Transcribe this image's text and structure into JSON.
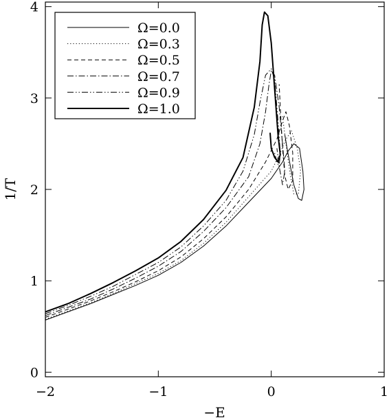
{
  "chart_data": {
    "type": "line",
    "title": "",
    "xlabel": "−E",
    "ylabel": "1/T",
    "xlim": [
      -2,
      1
    ],
    "ylim": [
      -0.05,
      4.05
    ],
    "x_ticks": [
      -2,
      -1,
      0,
      1
    ],
    "x_tick_labels": [
      "−2",
      "−1",
      "0",
      "1"
    ],
    "y_ticks": [
      0,
      1,
      2,
      3,
      4
    ],
    "y_tick_labels": [
      "0",
      "1",
      "2",
      "3",
      "4"
    ],
    "grid": false,
    "legend_position": "top-left",
    "series": [
      {
        "name": "Ω=0.0",
        "style": "solid",
        "width": 1.0,
        "points": [
          [
            -2.0,
            0.57
          ],
          [
            -1.8,
            0.66
          ],
          [
            -1.6,
            0.75
          ],
          [
            -1.4,
            0.85
          ],
          [
            -1.2,
            0.95
          ],
          [
            -1.0,
            1.06
          ],
          [
            -0.8,
            1.2
          ],
          [
            -0.6,
            1.38
          ],
          [
            -0.4,
            1.6
          ],
          [
            -0.2,
            1.86
          ],
          [
            0.0,
            2.12
          ],
          [
            0.1,
            2.3
          ],
          [
            0.15,
            2.42
          ],
          [
            0.2,
            2.5
          ],
          [
            0.25,
            2.45
          ],
          [
            0.28,
            2.2
          ],
          [
            0.29,
            2.0
          ],
          [
            0.27,
            1.88
          ],
          [
            0.24,
            1.9
          ],
          [
            0.2,
            2.05
          ],
          [
            0.17,
            2.25
          ],
          [
            0.14,
            2.45
          ],
          [
            0.12,
            2.6
          ]
        ]
      },
      {
        "name": "Ω=0.3",
        "style": "dotted",
        "width": 1.0,
        "points": [
          [
            -2.0,
            0.58
          ],
          [
            -1.8,
            0.67
          ],
          [
            -1.6,
            0.76
          ],
          [
            -1.4,
            0.86
          ],
          [
            -1.2,
            0.97
          ],
          [
            -1.0,
            1.08
          ],
          [
            -0.8,
            1.22
          ],
          [
            -0.6,
            1.41
          ],
          [
            -0.4,
            1.64
          ],
          [
            -0.2,
            1.92
          ],
          [
            0.0,
            2.2
          ],
          [
            0.08,
            2.4
          ],
          [
            0.13,
            2.55
          ],
          [
            0.18,
            2.64
          ],
          [
            0.23,
            2.45
          ],
          [
            0.26,
            2.2
          ],
          [
            0.24,
            1.95
          ],
          [
            0.2,
            1.95
          ],
          [
            0.17,
            2.15
          ],
          [
            0.14,
            2.4
          ],
          [
            0.12,
            2.6
          ],
          [
            0.1,
            2.8
          ]
        ]
      },
      {
        "name": "Ω=0.5",
        "style": "dashed",
        "width": 1.0,
        "points": [
          [
            -2.0,
            0.6
          ],
          [
            -1.8,
            0.69
          ],
          [
            -1.6,
            0.78
          ],
          [
            -1.4,
            0.88
          ],
          [
            -1.2,
            0.99
          ],
          [
            -1.0,
            1.11
          ],
          [
            -0.8,
            1.26
          ],
          [
            -0.6,
            1.46
          ],
          [
            -0.4,
            1.7
          ],
          [
            -0.2,
            2.0
          ],
          [
            -0.05,
            2.3
          ],
          [
            0.05,
            2.55
          ],
          [
            0.1,
            2.75
          ],
          [
            0.13,
            2.85
          ],
          [
            0.16,
            2.7
          ],
          [
            0.19,
            2.4
          ],
          [
            0.19,
            2.1
          ],
          [
            0.15,
            2.0
          ],
          [
            0.12,
            2.15
          ],
          [
            0.1,
            2.45
          ],
          [
            0.08,
            2.9
          ],
          [
            0.07,
            3.15
          ]
        ]
      },
      {
        "name": "Ω=0.7",
        "style": "dashdot",
        "width": 1.0,
        "points": [
          [
            -2.0,
            0.62
          ],
          [
            -1.8,
            0.71
          ],
          [
            -1.6,
            0.8
          ],
          [
            -1.4,
            0.91
          ],
          [
            -1.2,
            1.03
          ],
          [
            -1.0,
            1.16
          ],
          [
            -0.8,
            1.32
          ],
          [
            -0.6,
            1.54
          ],
          [
            -0.4,
            1.8
          ],
          [
            -0.2,
            2.14
          ],
          [
            -0.1,
            2.5
          ],
          [
            -0.05,
            2.85
          ],
          [
            -0.02,
            3.15
          ],
          [
            0.0,
            3.3
          ],
          [
            0.03,
            3.25
          ],
          [
            0.07,
            2.9
          ],
          [
            0.1,
            2.5
          ],
          [
            0.12,
            2.2
          ],
          [
            0.1,
            2.05
          ],
          [
            0.07,
            2.25
          ],
          [
            0.05,
            2.45
          ]
        ]
      },
      {
        "name": "Ω=0.9",
        "style": "dashdotdot",
        "width": 1.0,
        "points": [
          [
            -2.0,
            0.64
          ],
          [
            -1.8,
            0.73
          ],
          [
            -1.6,
            0.83
          ],
          [
            -1.4,
            0.94
          ],
          [
            -1.2,
            1.07
          ],
          [
            -1.0,
            1.2
          ],
          [
            -0.8,
            1.37
          ],
          [
            -0.6,
            1.6
          ],
          [
            -0.4,
            1.88
          ],
          [
            -0.25,
            2.2
          ],
          [
            -0.15,
            2.6
          ],
          [
            -0.1,
            2.95
          ],
          [
            -0.05,
            3.25
          ],
          [
            0.0,
            3.32
          ],
          [
            0.03,
            3.2
          ],
          [
            0.06,
            2.75
          ],
          [
            0.08,
            2.4
          ],
          [
            0.07,
            2.25
          ],
          [
            0.05,
            2.3
          ],
          [
            0.03,
            2.4
          ]
        ]
      },
      {
        "name": "Ω=1.0",
        "style": "solid",
        "width": 2.0,
        "points": [
          [
            -2.0,
            0.66
          ],
          [
            -1.8,
            0.75
          ],
          [
            -1.6,
            0.86
          ],
          [
            -1.4,
            0.98
          ],
          [
            -1.2,
            1.11
          ],
          [
            -1.0,
            1.25
          ],
          [
            -0.8,
            1.43
          ],
          [
            -0.6,
            1.67
          ],
          [
            -0.4,
            1.99
          ],
          [
            -0.25,
            2.35
          ],
          [
            -0.15,
            2.9
          ],
          [
            -0.1,
            3.4
          ],
          [
            -0.08,
            3.8
          ],
          [
            -0.06,
            3.94
          ],
          [
            -0.03,
            3.9
          ],
          [
            0.0,
            3.6
          ],
          [
            0.03,
            3.1
          ],
          [
            0.06,
            2.6
          ],
          [
            0.08,
            2.38
          ],
          [
            0.06,
            2.3
          ],
          [
            0.03,
            2.35
          ],
          [
            0.0,
            2.45
          ],
          [
            -0.01,
            2.62
          ]
        ]
      }
    ]
  }
}
